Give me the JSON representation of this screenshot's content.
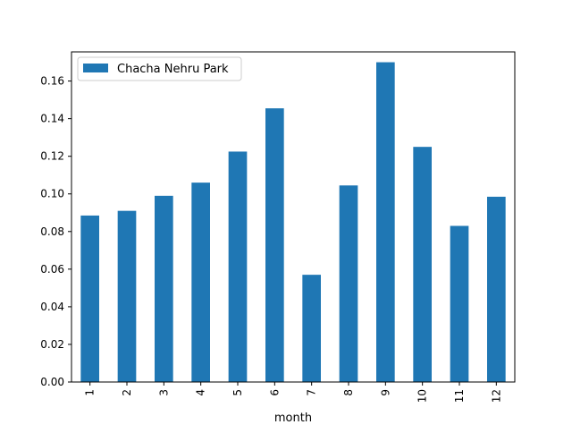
{
  "chart_data": {
    "type": "bar",
    "categories": [
      "1",
      "2",
      "3",
      "4",
      "5",
      "6",
      "7",
      "8",
      "9",
      "10",
      "11",
      "12"
    ],
    "series": [
      {
        "name": "Chacha Nehru Park",
        "color": "#1f77b4",
        "values": [
          0.0885,
          0.091,
          0.099,
          0.106,
          0.1225,
          0.1455,
          0.057,
          0.1045,
          0.17,
          0.125,
          0.083,
          0.0985
        ]
      }
    ],
    "title": "",
    "xlabel": "month",
    "ylabel": "",
    "ylim": [
      0,
      0.1755
    ],
    "yticks": [
      0.0,
      0.02,
      0.04,
      0.06,
      0.08,
      0.1,
      0.12,
      0.14,
      0.16
    ],
    "ytick_labels": [
      "0.00",
      "0.02",
      "0.04",
      "0.06",
      "0.08",
      "0.10",
      "0.12",
      "0.14",
      "0.16"
    ],
    "xtick_rotation": "vertical",
    "grid": false,
    "legend": {
      "position": "upper-left",
      "entries": [
        "Chacha Nehru Park"
      ]
    }
  }
}
